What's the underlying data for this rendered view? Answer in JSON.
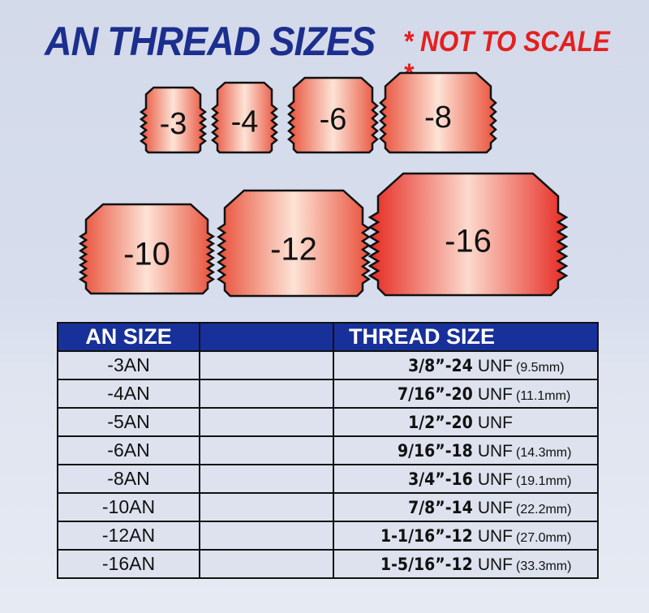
{
  "title": "AN THREAD SIZES",
  "note": "* NOT TO SCALE *",
  "colors": {
    "title": "#1c2f8e",
    "note": "#e4201f",
    "header_bg": "#17309a",
    "fitting_edge": "#e8503a",
    "fitting_center": "#fde3d6"
  },
  "fittings": [
    {
      "label": "-3"
    },
    {
      "label": "-4"
    },
    {
      "label": "-6"
    },
    {
      "label": "-8"
    },
    {
      "label": "-10"
    },
    {
      "label": "-12"
    },
    {
      "label": "-16"
    }
  ],
  "table": {
    "headers": [
      "AN SIZE",
      "",
      "THREAD SIZE"
    ],
    "rows": [
      {
        "an": "-3AN",
        "thread": "3/8”-24",
        "unf": "UNF",
        "mm": "(9.5mm)"
      },
      {
        "an": "-4AN",
        "thread": "7/16”-20",
        "unf": "UNF",
        "mm": "(11.1mm)"
      },
      {
        "an": "-5AN",
        "thread": "1/2”-20",
        "unf": "UNF",
        "mm": ""
      },
      {
        "an": "-6AN",
        "thread": "9/16”-18",
        "unf": "UNF",
        "mm": "(14.3mm)"
      },
      {
        "an": "-8AN",
        "thread": "3/4”-16",
        "unf": "UNF",
        "mm": "(19.1mm)"
      },
      {
        "an": "-10AN",
        "thread": "7/8”-14",
        "unf": "UNF",
        "mm": "(22.2mm)"
      },
      {
        "an": "-12AN",
        "thread": "1-1/16”-12",
        "unf": "UNF",
        "mm": "(27.0mm)"
      },
      {
        "an": "-16AN",
        "thread": "1-5/16”-12",
        "unf": "UNF",
        "mm": "(33.3mm)"
      }
    ]
  }
}
